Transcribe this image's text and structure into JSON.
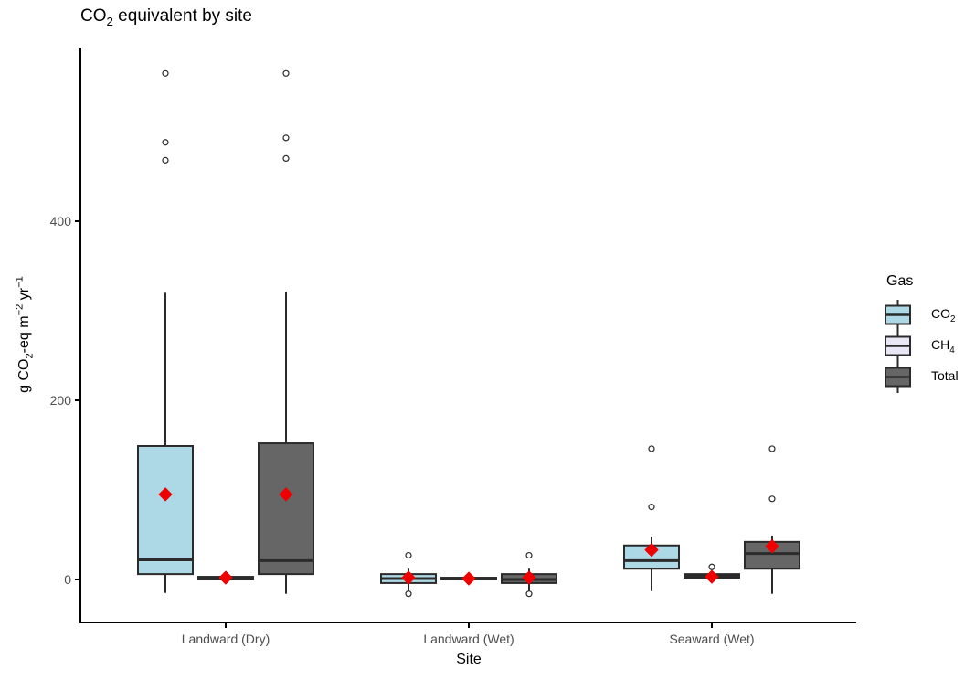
{
  "title": {
    "main": "CO",
    "sub": "2",
    "rest": " equivalent by site"
  },
  "ylabel_parts": {
    "p1": "g CO",
    "sub1": "2",
    "p2": "-eq m",
    "sup1": "−2",
    "p3": " yr",
    "sup2": "−1"
  },
  "colors": {
    "co2_fill": "#ADD8E6",
    "ch4_fill": "#E9E7F6",
    "total_fill": "#666666",
    "box_border": "#2B2B2B",
    "median_line": "#2B2B2B",
    "mean_marker": "#EE0000",
    "outlier_fill": "#FFFFFF",
    "outlier_stroke": "#2B2B2B",
    "axis_line": "#000000",
    "tick_label": "#4D4D4D"
  },
  "chart_data": {
    "type": "boxplot",
    "title": "CO2 equivalent by site",
    "xlabel": "Site",
    "ylabel": "g CO2-eq m-2 yr-1",
    "categories": [
      "Landward (Dry)",
      "Landward (Wet)",
      "Seaward (Wet)"
    ],
    "yticks": [
      0,
      200,
      400
    ],
    "ylim": [
      -50,
      595
    ],
    "grid": false,
    "legend": {
      "title": "Gas",
      "position": "right",
      "entries": [
        {
          "name": "CO2",
          "label_main": "CO",
          "label_sub": "2",
          "fill": "#ADD8E6"
        },
        {
          "name": "CH4",
          "label_main": "CH",
          "label_sub": "4",
          "fill": "#E9E7F6"
        },
        {
          "name": "Total",
          "label_main": "Total",
          "label_sub": "",
          "fill": "#666666"
        }
      ]
    },
    "mean_marker": {
      "shape": "diamond",
      "color": "#EE0000"
    },
    "series": [
      {
        "name": "CO2",
        "fill": "#ADD8E6",
        "boxes": [
          {
            "category": "Landward (Dry)",
            "whisker_low": -15,
            "q1": 6,
            "median": 22,
            "q3": 149,
            "whisker_high": 320,
            "mean": 95,
            "outliers": [
              565,
              488,
              468
            ]
          },
          {
            "category": "Landward (Wet)",
            "whisker_low": -14,
            "q1": -4,
            "median": 1,
            "q3": 6,
            "whisker_high": 12,
            "mean": 2,
            "outliers": [
              27,
              -16
            ]
          },
          {
            "category": "Seaward (Wet)",
            "whisker_low": -13,
            "q1": 12,
            "median": 21,
            "q3": 38,
            "whisker_high": 48,
            "mean": 33,
            "outliers": [
              146,
              81
            ]
          }
        ]
      },
      {
        "name": "CH4",
        "fill": "#E9E7F6",
        "boxes": [
          {
            "category": "Landward (Dry)",
            "whisker_low": 0,
            "q1": 0,
            "median": 1,
            "q3": 3,
            "whisker_high": 3,
            "mean": 2,
            "outliers": []
          },
          {
            "category": "Landward (Wet)",
            "whisker_low": 0,
            "q1": 0,
            "median": 1,
            "q3": 2,
            "whisker_high": 2,
            "mean": 1,
            "outliers": []
          },
          {
            "category": "Seaward (Wet)",
            "whisker_low": 2,
            "q1": 2,
            "median": 4,
            "q3": 6,
            "whisker_high": 6,
            "mean": 3,
            "outliers": [
              14
            ]
          }
        ]
      },
      {
        "name": "Total",
        "fill": "#666666",
        "boxes": [
          {
            "category": "Landward (Dry)",
            "whisker_low": -16,
            "q1": 6,
            "median": 21,
            "q3": 152,
            "whisker_high": 321,
            "mean": 95,
            "outliers": [
              565,
              493,
              470
            ]
          },
          {
            "category": "Landward (Wet)",
            "whisker_low": -14,
            "q1": -4,
            "median": 0,
            "q3": 6,
            "whisker_high": 12,
            "mean": 2,
            "outliers": [
              27,
              -16
            ]
          },
          {
            "category": "Seaward (Wet)",
            "whisker_low": -16,
            "q1": 12,
            "median": 29,
            "q3": 42,
            "whisker_high": 49,
            "mean": 37,
            "outliers": [
              146,
              90
            ]
          }
        ]
      }
    ]
  }
}
